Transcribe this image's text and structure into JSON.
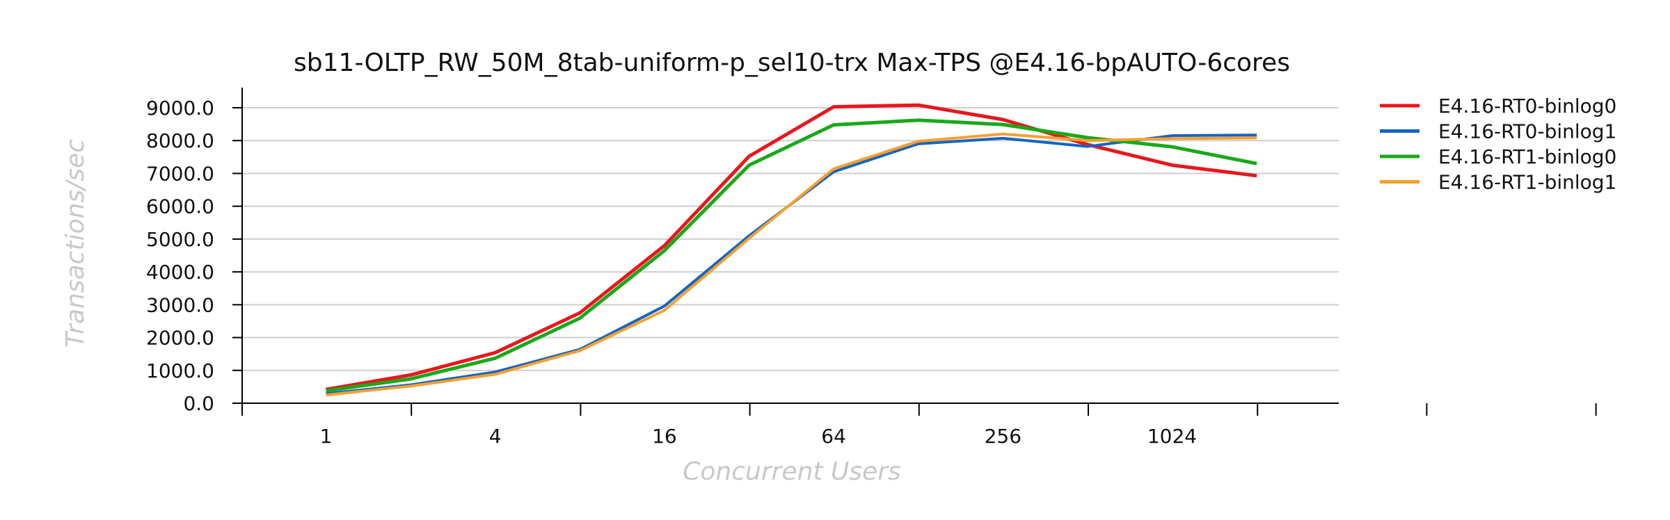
{
  "chart_data": {
    "type": "line",
    "title": "sb11-OLTP_RW_50M_8tab-uniform-p_sel10-trx Max-TPS @E4.16-bpAUTO-6cores",
    "xlabel": "Concurrent Users",
    "ylabel": "Transactions/sec",
    "x": [
      1,
      2,
      4,
      8,
      16,
      32,
      64,
      128,
      256,
      512,
      1024,
      2048
    ],
    "x_ticks_labeled": [
      "1",
      "4",
      "16",
      "64",
      "256",
      "1024"
    ],
    "x_scale": "log2",
    "ylim": [
      0,
      9000
    ],
    "y_ticks": [
      "0.0",
      "1000.0",
      "2000.0",
      "3000.0",
      "4000.0",
      "5000.0",
      "6000.0",
      "7000.0",
      "8000.0",
      "9000.0"
    ],
    "grid": "horizontal",
    "legend_position": "right",
    "series": [
      {
        "name": "E4.16-RT0-binlog0",
        "color": "#e8171d",
        "values": [
          420,
          860,
          1540,
          2750,
          4800,
          7520,
          9030,
          9080,
          8640,
          7880,
          7250,
          6930
        ]
      },
      {
        "name": "E4.16-RT0-binlog1",
        "color": "#1565c0",
        "values": [
          290,
          560,
          950,
          1640,
          2960,
          5100,
          7050,
          7900,
          8070,
          7820,
          8150,
          8170
        ]
      },
      {
        "name": "E4.16-RT1-binlog0",
        "color": "#1aa81a",
        "values": [
          380,
          740,
          1370,
          2590,
          4650,
          7250,
          8480,
          8620,
          8490,
          8090,
          7810,
          7300
        ]
      },
      {
        "name": "E4.16-RT1-binlog1",
        "color": "#f5a030",
        "values": [
          250,
          520,
          880,
          1600,
          2830,
          5020,
          7140,
          7980,
          8200,
          8000,
          8060,
          8080
        ]
      }
    ]
  }
}
